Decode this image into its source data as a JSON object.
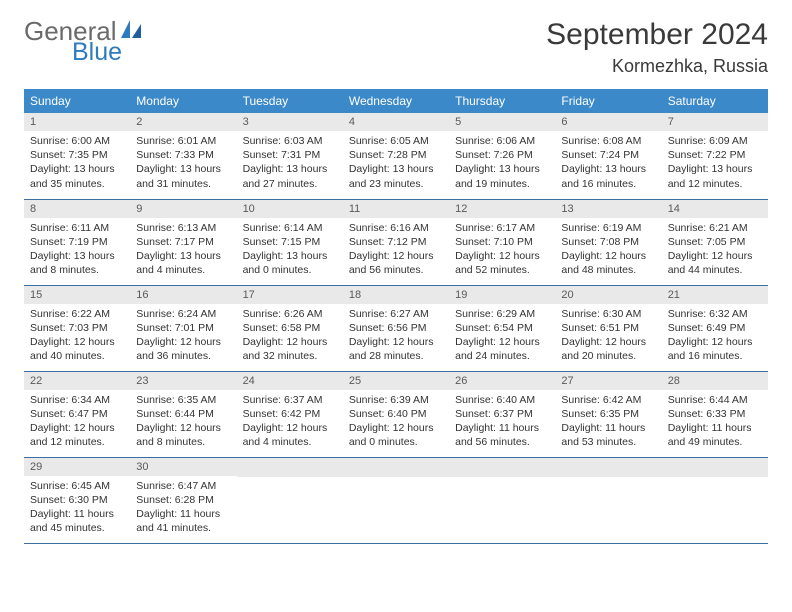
{
  "logo": {
    "part1": "General",
    "part2": "Blue"
  },
  "title": "September 2024",
  "location": "Kormezhka, Russia",
  "colors": {
    "header_bg": "#3b89c9",
    "header_fg": "#ffffff",
    "daynum_bg": "#e9e9e9",
    "daynum_fg": "#5a5a5a",
    "rule": "#3b6fa3",
    "logo_gray": "#6a6a6a",
    "logo_blue": "#2f7bbf"
  },
  "weekdays": [
    "Sunday",
    "Monday",
    "Tuesday",
    "Wednesday",
    "Thursday",
    "Friday",
    "Saturday"
  ],
  "weeks": [
    [
      {
        "n": "1",
        "sr": "6:00 AM",
        "ss": "7:35 PM",
        "dl": "13 hours and 35 minutes."
      },
      {
        "n": "2",
        "sr": "6:01 AM",
        "ss": "7:33 PM",
        "dl": "13 hours and 31 minutes."
      },
      {
        "n": "3",
        "sr": "6:03 AM",
        "ss": "7:31 PM",
        "dl": "13 hours and 27 minutes."
      },
      {
        "n": "4",
        "sr": "6:05 AM",
        "ss": "7:28 PM",
        "dl": "13 hours and 23 minutes."
      },
      {
        "n": "5",
        "sr": "6:06 AM",
        "ss": "7:26 PM",
        "dl": "13 hours and 19 minutes."
      },
      {
        "n": "6",
        "sr": "6:08 AM",
        "ss": "7:24 PM",
        "dl": "13 hours and 16 minutes."
      },
      {
        "n": "7",
        "sr": "6:09 AM",
        "ss": "7:22 PM",
        "dl": "13 hours and 12 minutes."
      }
    ],
    [
      {
        "n": "8",
        "sr": "6:11 AM",
        "ss": "7:19 PM",
        "dl": "13 hours and 8 minutes."
      },
      {
        "n": "9",
        "sr": "6:13 AM",
        "ss": "7:17 PM",
        "dl": "13 hours and 4 minutes."
      },
      {
        "n": "10",
        "sr": "6:14 AM",
        "ss": "7:15 PM",
        "dl": "13 hours and 0 minutes."
      },
      {
        "n": "11",
        "sr": "6:16 AM",
        "ss": "7:12 PM",
        "dl": "12 hours and 56 minutes."
      },
      {
        "n": "12",
        "sr": "6:17 AM",
        "ss": "7:10 PM",
        "dl": "12 hours and 52 minutes."
      },
      {
        "n": "13",
        "sr": "6:19 AM",
        "ss": "7:08 PM",
        "dl": "12 hours and 48 minutes."
      },
      {
        "n": "14",
        "sr": "6:21 AM",
        "ss": "7:05 PM",
        "dl": "12 hours and 44 minutes."
      }
    ],
    [
      {
        "n": "15",
        "sr": "6:22 AM",
        "ss": "7:03 PM",
        "dl": "12 hours and 40 minutes."
      },
      {
        "n": "16",
        "sr": "6:24 AM",
        "ss": "7:01 PM",
        "dl": "12 hours and 36 minutes."
      },
      {
        "n": "17",
        "sr": "6:26 AM",
        "ss": "6:58 PM",
        "dl": "12 hours and 32 minutes."
      },
      {
        "n": "18",
        "sr": "6:27 AM",
        "ss": "6:56 PM",
        "dl": "12 hours and 28 minutes."
      },
      {
        "n": "19",
        "sr": "6:29 AM",
        "ss": "6:54 PM",
        "dl": "12 hours and 24 minutes."
      },
      {
        "n": "20",
        "sr": "6:30 AM",
        "ss": "6:51 PM",
        "dl": "12 hours and 20 minutes."
      },
      {
        "n": "21",
        "sr": "6:32 AM",
        "ss": "6:49 PM",
        "dl": "12 hours and 16 minutes."
      }
    ],
    [
      {
        "n": "22",
        "sr": "6:34 AM",
        "ss": "6:47 PM",
        "dl": "12 hours and 12 minutes."
      },
      {
        "n": "23",
        "sr": "6:35 AM",
        "ss": "6:44 PM",
        "dl": "12 hours and 8 minutes."
      },
      {
        "n": "24",
        "sr": "6:37 AM",
        "ss": "6:42 PM",
        "dl": "12 hours and 4 minutes."
      },
      {
        "n": "25",
        "sr": "6:39 AM",
        "ss": "6:40 PM",
        "dl": "12 hours and 0 minutes."
      },
      {
        "n": "26",
        "sr": "6:40 AM",
        "ss": "6:37 PM",
        "dl": "11 hours and 56 minutes."
      },
      {
        "n": "27",
        "sr": "6:42 AM",
        "ss": "6:35 PM",
        "dl": "11 hours and 53 minutes."
      },
      {
        "n": "28",
        "sr": "6:44 AM",
        "ss": "6:33 PM",
        "dl": "11 hours and 49 minutes."
      }
    ],
    [
      {
        "n": "29",
        "sr": "6:45 AM",
        "ss": "6:30 PM",
        "dl": "11 hours and 45 minutes."
      },
      {
        "n": "30",
        "sr": "6:47 AM",
        "ss": "6:28 PM",
        "dl": "11 hours and 41 minutes."
      },
      {
        "empty": true
      },
      {
        "empty": true
      },
      {
        "empty": true
      },
      {
        "empty": true
      },
      {
        "empty": true
      }
    ]
  ],
  "labels": {
    "sunrise": "Sunrise:",
    "sunset": "Sunset:",
    "daylight": "Daylight:"
  }
}
